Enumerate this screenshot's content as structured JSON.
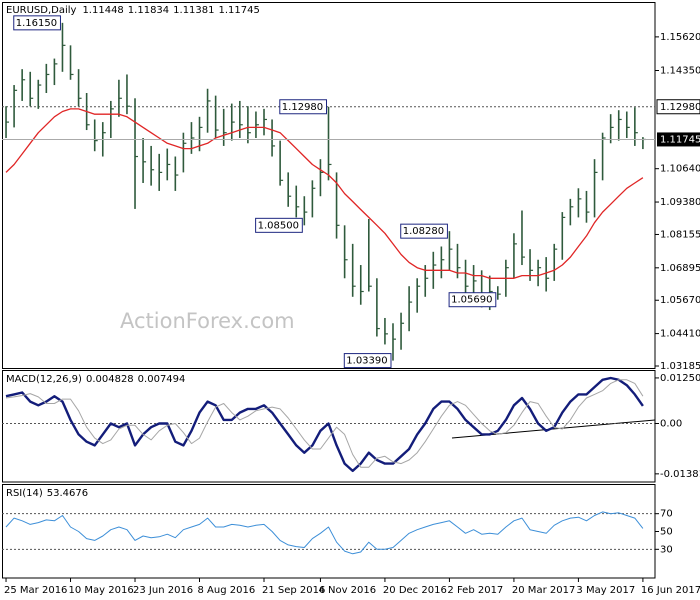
{
  "chart_data": [
    {
      "type": "ohlc",
      "title": "EURUSD,Daily",
      "open": 1.11448,
      "watermark": "ActionForex.com",
      "ylim": [
        1.0311,
        1.169
      ],
      "yticks": [
        {
          "value": 1.1562,
          "label": "1.15620"
        },
        {
          "value": 1.1435,
          "label": "1.14350"
        },
        {
          "value": 1.1064,
          "label": "1.10640"
        },
        {
          "value": 1.0938,
          "label": "1.09380"
        },
        {
          "value": 1.08155,
          "label": "1.08155"
        },
        {
          "value": 1.06895,
          "label": "1.06895"
        },
        {
          "value": 1.0567,
          "label": "1.05670"
        },
        {
          "value": 1.0441,
          "label": "1.04410"
        },
        {
          "value": 1.03185,
          "label": "1.03185"
        }
      ],
      "color": "#2f5a3c",
      "high": [
        1.13,
        1.138,
        1.144,
        1.143,
        1.14,
        1.146,
        1.148,
        1.1615,
        1.153,
        1.144,
        1.135,
        1.125,
        1.124,
        1.132,
        1.14,
        1.142,
        1.133,
        1.118,
        1.115,
        1.112,
        1.114,
        1.111,
        1.12,
        1.124,
        1.126,
        1.1366,
        1.134,
        1.129,
        1.131,
        1.132,
        1.13,
        1.128,
        1.129,
        1.125,
        1.117,
        1.105,
        1.1,
        1.096,
        1.102,
        1.11,
        1.1298,
        1.105,
        1.085,
        1.078,
        1.07,
        1.0874,
        1.065,
        1.05,
        1.048,
        1.052,
        1.062,
        1.065,
        1.07,
        1.075,
        1.077,
        1.0828,
        1.078,
        1.072,
        1.07,
        1.068,
        1.066,
        1.062,
        1.072,
        1.082,
        1.0906,
        1.076,
        1.072,
        1.073,
        1.078,
        1.09,
        1.095,
        1.099,
        1.098,
        1.11,
        1.12,
        1.127,
        1.1285,
        1.128,
        1.1296,
        1.11834
      ],
      "low": [
        1.118,
        1.122,
        1.132,
        1.13,
        1.129,
        1.135,
        1.138,
        1.143,
        1.14,
        1.13,
        1.121,
        1.113,
        1.111,
        1.118,
        1.126,
        1.127,
        1.0912,
        1.101,
        1.1,
        1.098,
        1.102,
        1.098,
        1.105,
        1.112,
        1.113,
        1.12,
        1.118,
        1.115,
        1.117,
        1.118,
        1.116,
        1.118,
        1.119,
        1.111,
        1.1,
        1.092,
        1.088,
        1.085,
        1.088,
        1.096,
        1.102,
        1.08,
        1.065,
        1.058,
        1.055,
        1.06,
        1.043,
        1.04,
        1.0339,
        1.038,
        1.045,
        1.052,
        1.058,
        1.061,
        1.065,
        1.068,
        1.065,
        1.059,
        1.056,
        1.054,
        1.053,
        1.0569,
        1.058,
        1.065,
        1.07,
        1.064,
        1.062,
        1.06,
        1.064,
        1.072,
        1.085,
        1.088,
        1.086,
        1.088,
        1.102,
        1.116,
        1.117,
        1.118,
        1.115,
        1.11381
      ],
      "close": [
        1.124,
        1.136,
        1.14,
        1.133,
        1.138,
        1.142,
        1.146,
        1.153,
        1.142,
        1.133,
        1.123,
        1.117,
        1.12,
        1.129,
        1.133,
        1.13,
        1.111,
        1.109,
        1.106,
        1.105,
        1.108,
        1.104,
        1.116,
        1.118,
        1.122,
        1.132,
        1.121,
        1.12,
        1.124,
        1.123,
        1.12,
        1.123,
        1.125,
        1.115,
        1.102,
        1.096,
        1.092,
        1.09,
        1.099,
        1.105,
        1.108,
        1.085,
        1.072,
        1.062,
        1.06,
        1.062,
        1.046,
        1.044,
        1.042,
        1.048,
        1.056,
        1.062,
        1.065,
        1.07,
        1.072,
        1.076,
        1.069,
        1.062,
        1.064,
        1.058,
        1.06,
        1.059,
        1.069,
        1.078,
        1.073,
        1.068,
        1.069,
        1.065,
        1.076,
        1.088,
        1.092,
        1.095,
        1.09,
        1.105,
        1.118,
        1.122,
        1.125,
        1.122,
        1.12,
        1.11745
      ],
      "ma": {
        "color": "#e02626",
        "values": [
          1.105,
          1.108,
          1.112,
          1.116,
          1.12,
          1.123,
          1.126,
          1.128,
          1.129,
          1.129,
          1.128,
          1.127,
          1.127,
          1.127,
          1.127,
          1.126,
          1.124,
          1.122,
          1.12,
          1.118,
          1.116,
          1.115,
          1.114,
          1.114,
          1.115,
          1.116,
          1.118,
          1.119,
          1.12,
          1.121,
          1.122,
          1.122,
          1.122,
          1.121,
          1.12,
          1.117,
          1.114,
          1.111,
          1.108,
          1.106,
          1.104,
          1.101,
          1.097,
          1.094,
          1.091,
          1.088,
          1.085,
          1.082,
          1.078,
          1.074,
          1.071,
          1.069,
          1.068,
          1.068,
          1.068,
          1.068,
          1.067,
          1.067,
          1.066,
          1.066,
          1.065,
          1.065,
          1.065,
          1.065,
          1.066,
          1.066,
          1.066,
          1.067,
          1.068,
          1.07,
          1.073,
          1.077,
          1.081,
          1.086,
          1.09,
          1.093,
          1.096,
          1.099,
          1.101,
          1.103
        ]
      },
      "annotations": [
        {
          "x": 7,
          "value": 1.1615,
          "label": "1.16150"
        },
        {
          "x": 40,
          "value": 1.1298,
          "label": "1.12980"
        },
        {
          "x": 37,
          "value": 1.085,
          "label": "1.08500"
        },
        {
          "x": 55,
          "value": 1.0828,
          "label": "1.08280"
        },
        {
          "x": 61,
          "value": 1.0569,
          "label": "1.05690"
        },
        {
          "x": 48,
          "value": 1.0339,
          "label": "1.03390"
        }
      ],
      "hlines": [
        {
          "value": 1.1298,
          "label": "1.12980"
        }
      ]
    },
    {
      "type": "line",
      "title": "MACD(12,26,9)",
      "ylim": [
        -0.01605,
        0.01441
      ],
      "yticks": [
        0.012509,
        {
          "value": 0,
          "label": "0.00"
        },
        -0.013813
      ],
      "hlines": [
        0
      ],
      "series": [
        {
          "color": "#131d7a",
          "values": [
            0.0075,
            0.008,
            0.0085,
            0.006,
            0.005,
            0.006,
            0.0075,
            0.006,
            0.001,
            -0.003,
            -0.005,
            -0.006,
            -0.003,
            0,
            -0.001,
            0,
            -0.006,
            -0.003,
            -0.001,
            0,
            0,
            -0.005,
            -0.006,
            -0.002,
            0.003,
            0.006,
            0.005,
            0.001,
            0.001,
            0.003,
            0.004,
            0.004,
            0.005,
            0.003,
            0,
            -0.003,
            -0.006,
            -0.008,
            -0.006,
            -0.002,
            0,
            -0.006,
            -0.011,
            -0.013,
            -0.011,
            -0.008,
            -0.01,
            -0.011,
            -0.011,
            -0.009,
            -0.007,
            -0.003,
            0,
            0.004,
            0.006,
            0.006,
            0.004,
            0.001,
            -0.001,
            -0.003,
            -0.003,
            -0.002,
            0.001,
            0.005,
            0.007,
            0.004,
            0,
            -0.002,
            -0.001,
            0.003,
            0.006,
            0.008,
            0.008,
            0.01,
            0.012,
            0.0125,
            0.012,
            0.0105,
            0.008,
            0.004828
          ]
        },
        {
          "color": "#a6a6a6",
          "values": [
            0.007,
            0.0073,
            0.0077,
            0.0082,
            0.0073,
            0.0055,
            0.0055,
            0.0067,
            0.0067,
            0.0035,
            -0.001,
            -0.004,
            -0.0055,
            -0.0045,
            -0.0015,
            -0.0005,
            -0.0005,
            -0.003,
            -0.0045,
            -0.002,
            -0.0005,
            0,
            -0.0025,
            -0.0055,
            -0.004,
            0.0005,
            0.0045,
            0.0055,
            0.003,
            0.001,
            0.002,
            0.0035,
            0.004,
            0.0045,
            0.004,
            0.0015,
            -0.0015,
            -0.0045,
            -0.007,
            -0.007,
            -0.004,
            -0.001,
            -0.003,
            -0.0085,
            -0.012,
            -0.012,
            -0.0095,
            -0.009,
            -0.0105,
            -0.011,
            -0.01,
            -0.008,
            -0.005,
            -0.0015,
            0.002,
            0.005,
            0.006,
            0.005,
            0.0025,
            0,
            -0.002,
            -0.003,
            -0.0025,
            -0.0005,
            0.003,
            0.006,
            0.0055,
            0.002,
            -0.001,
            -0.0015,
            0.001,
            0.0045,
            0.007,
            0.008,
            0.009,
            0.011,
            0.012,
            0.012,
            0.011,
            0.007494
          ]
        }
      ]
    },
    {
      "type": "line",
      "title": "RSI(14)",
      "ylim": [
        -2.2,
        102.2
      ],
      "yticks": [
        70,
        50,
        30
      ],
      "hlines": [
        70,
        30
      ],
      "series": [
        {
          "color": "#3d8fd8",
          "values": [
            55,
            65,
            62,
            58,
            60,
            63,
            62,
            68,
            55,
            50,
            42,
            40,
            45,
            52,
            55,
            52,
            40,
            45,
            43,
            44,
            47,
            43,
            52,
            55,
            58,
            65,
            55,
            55,
            58,
            57,
            55,
            57,
            58,
            50,
            40,
            35,
            33,
            32,
            42,
            48,
            55,
            38,
            28,
            25,
            27,
            38,
            30,
            30,
            32,
            40,
            48,
            52,
            55,
            58,
            60,
            62,
            55,
            48,
            52,
            47,
            48,
            47,
            55,
            62,
            65,
            52,
            50,
            48,
            57,
            62,
            65,
            66,
            62,
            68,
            72,
            70,
            71,
            68,
            65,
            53.4676
          ]
        }
      ],
      "xlim": [
        -0.5,
        80.5
      ],
      "xticks": [
        {
          "value": 0,
          "label": "25 Mar 2016"
        },
        {
          "value": 8,
          "label": "10 May 2016"
        },
        {
          "value": 16,
          "label": "23 Jun 2016"
        },
        {
          "value": 24,
          "label": "8 Aug 2016"
        },
        {
          "value": 32,
          "label": "21 Sep 2016"
        },
        {
          "value": 39,
          "label": "4 Nov 2016"
        },
        {
          "value": 47,
          "label": "20 Dec 2016"
        },
        {
          "value": 55,
          "label": "2 Feb 2017"
        },
        {
          "value": 63,
          "label": "20 Mar 2017"
        },
        {
          "value": 71,
          "label": "3 May 2017"
        },
        {
          "value": 79,
          "label": "16 Jun 2017"
        }
      ]
    }
  ]
}
